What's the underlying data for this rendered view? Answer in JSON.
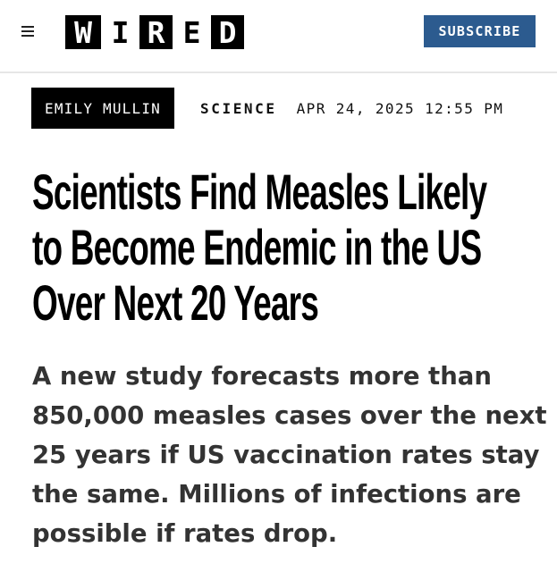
{
  "header": {
    "menu_icon": "hamburger-menu-icon",
    "logo": {
      "text": "WIRED",
      "letters": [
        "W",
        "I",
        "R",
        "E",
        "D"
      ]
    },
    "subscribe_label": "SUBSCRIBE",
    "subscribe_color": "#2c5b8f"
  },
  "byline": {
    "author": "EMILY MULLIN",
    "section": "SCIENCE",
    "timestamp": "APR 24, 2025 12:55 PM"
  },
  "article": {
    "headline": "Scientists Find Measles Likely to Become Endemic in the US Over Next 20 Years",
    "headline_lines": [
      "Scientists Find Measles Likely",
      "to Become Endemic in the US",
      "Over Next 20 Years"
    ],
    "dek": "A new study forecasts more than 850,000 measles cases over the next 25 years if US vaccination rates stay the same. Millions of infections are possible if rates drop.",
    "dek_lines": [
      "A new study forecasts more than",
      "850,000 measles cases over the next",
      "25 years if US vaccination rates stay",
      "the same. Millions of infections are",
      "possible if rates drop."
    ]
  }
}
